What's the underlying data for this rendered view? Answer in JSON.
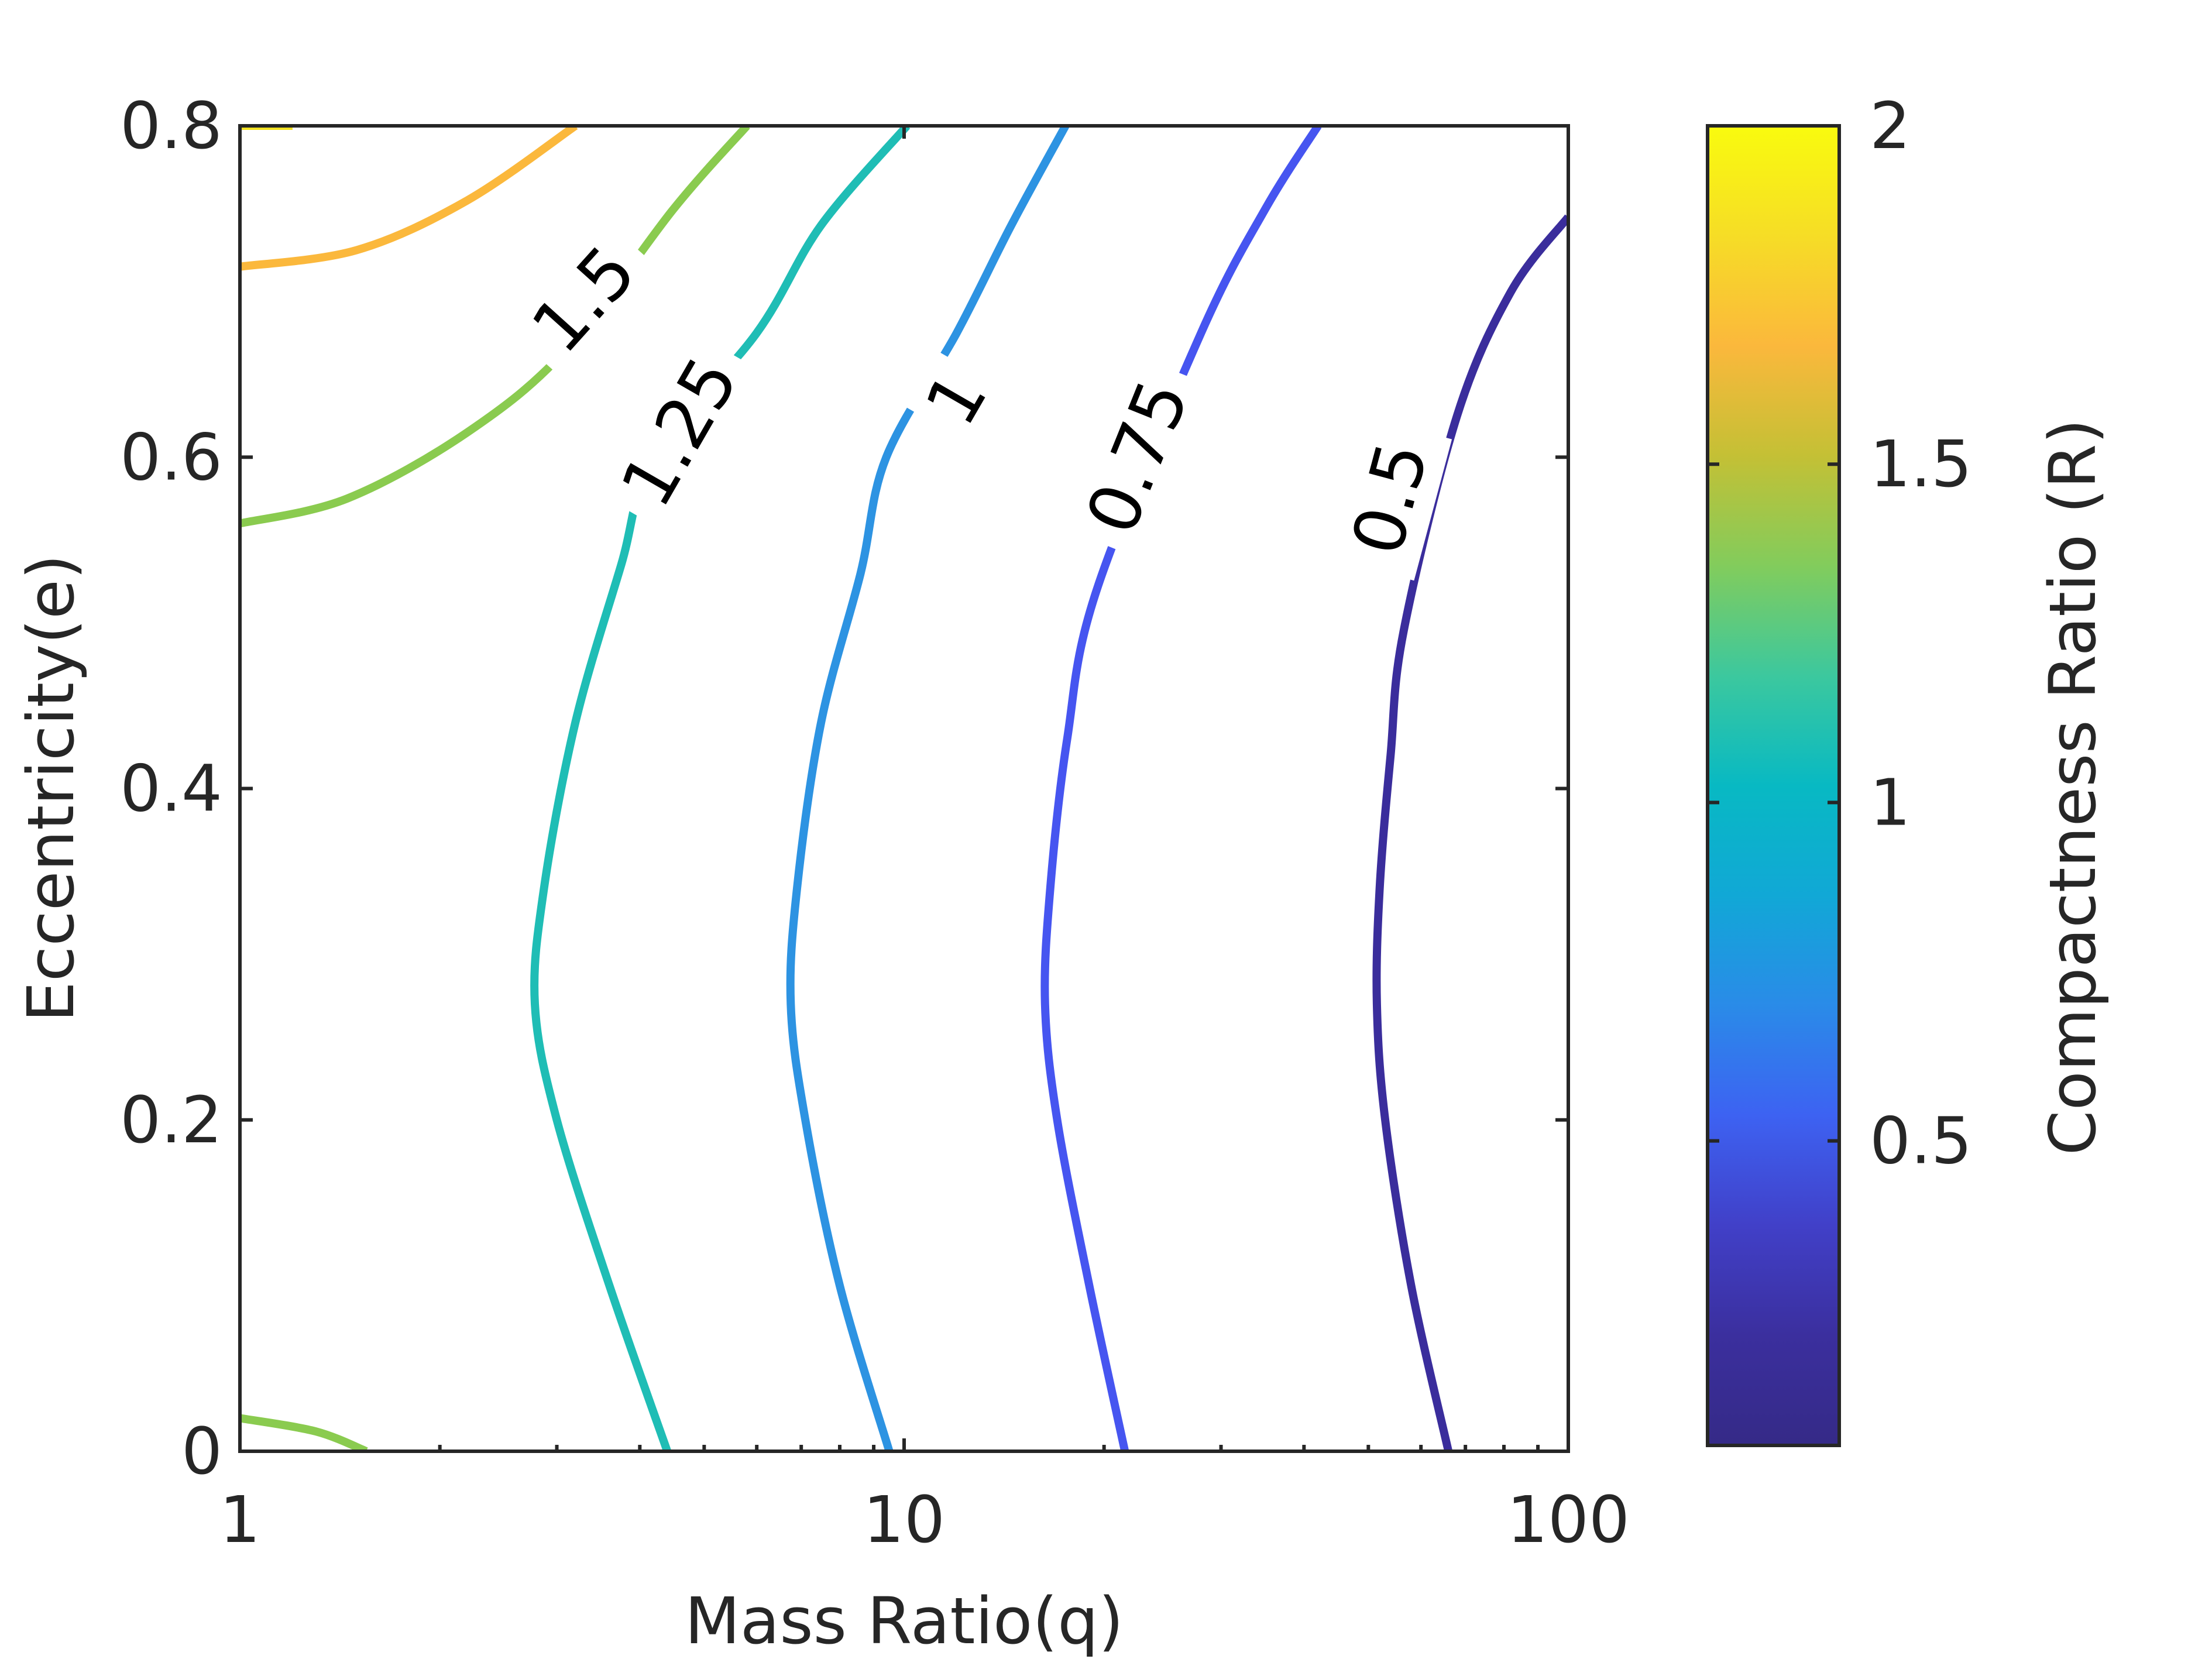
{
  "chart_data": {
    "type": "contour",
    "xlabel": "Mass Ratio(q)",
    "ylabel": "Eccentricity(e)",
    "xscale": "log",
    "xlim": [
      1,
      100
    ],
    "ylim": [
      0,
      0.8
    ],
    "xticks": [
      1,
      10,
      100
    ],
    "xtick_labels": [
      "1",
      "10",
      "100"
    ],
    "yticks": [
      0,
      0.2,
      0.4,
      0.6,
      0.8
    ],
    "ytick_labels": [
      "0",
      "0.2",
      "0.4",
      "0.6",
      "0.8"
    ],
    "grid": false,
    "colorbar": {
      "label": "Compactness Ratio (R)",
      "range": [
        0.05,
        2.0
      ],
      "ticks": [
        0.5,
        1,
        1.5,
        2
      ],
      "tick_labels": [
        "0.5",
        "1",
        "1.5",
        "2"
      ],
      "colormap": "parula",
      "colors": [
        "#352a87",
        "#3b2f9e",
        "#4140c8",
        "#3d62f2",
        "#2a8be8",
        "#11a8d6",
        "#08b9c3",
        "#3cc89e",
        "#82cc5c",
        "#c4c035",
        "#fbb83c",
        "#f6dd26",
        "#f9fb0e"
      ]
    },
    "contours": [
      {
        "level": 0.5,
        "label": "0.5",
        "color": "#3a2d9c",
        "label_at": {
          "q": 54,
          "e": 0.575,
          "angle": -75
        },
        "points": [
          [
            66,
            0.0
          ],
          [
            58,
            0.1
          ],
          [
            53,
            0.2
          ],
          [
            51.5,
            0.27
          ],
          [
            52,
            0.34
          ],
          [
            54,
            0.42
          ],
          [
            56.5,
            0.495
          ],
          [
            68,
            0.625
          ],
          [
            82,
            0.7
          ],
          [
            100,
            0.745
          ]
        ]
      },
      {
        "level": 0.75,
        "label": "0.75",
        "color": "#4655f0",
        "label_at": {
          "q": 22.5,
          "e": 0.6,
          "angle": -68
        },
        "points": [
          [
            21.5,
            0.0
          ],
          [
            19,
            0.1
          ],
          [
            17,
            0.2
          ],
          [
            16.3,
            0.27
          ],
          [
            16.6,
            0.34
          ],
          [
            17.6,
            0.43
          ],
          [
            19.5,
            0.52
          ],
          [
            28,
            0.675
          ],
          [
            35,
            0.75
          ],
          [
            42,
            0.8
          ]
        ]
      },
      {
        "level": 1,
        "label": "1",
        "color": "#2d93e2",
        "label_at": {
          "q": 12,
          "e": 0.635,
          "angle": -60
        },
        "points": [
          [
            9.5,
            0.0
          ],
          [
            8,
            0.1
          ],
          [
            7.1,
            0.2
          ],
          [
            6.75,
            0.27
          ],
          [
            6.9,
            0.34
          ],
          [
            7.5,
            0.44
          ],
          [
            8.6,
            0.53
          ],
          [
            9.4,
            0.6
          ],
          [
            12,
            0.675
          ],
          [
            14.5,
            0.74
          ],
          [
            17.5,
            0.8
          ]
        ]
      },
      {
        "level": 1.25,
        "label": "1.25",
        "color": "#1fbdb5",
        "label_at": {
          "q": 4.6,
          "e": 0.615,
          "angle": -60
        },
        "points": [
          [
            4.4,
            0.0
          ],
          [
            3.6,
            0.1
          ],
          [
            3.0,
            0.2
          ],
          [
            2.78,
            0.27
          ],
          [
            2.87,
            0.34
          ],
          [
            3.2,
            0.44
          ],
          [
            3.75,
            0.535
          ],
          [
            4.2,
            0.6
          ],
          [
            6.0,
            0.675
          ],
          [
            7.5,
            0.74
          ],
          [
            10.1,
            0.8
          ]
        ]
      },
      {
        "level": 1.5,
        "label": "1.5",
        "color": "#8acb4f",
        "label_at": {
          "q": 3.3,
          "e": 0.695,
          "angle": -48
        },
        "points": [
          [
            1.0,
            0.56
          ],
          [
            1.45,
            0.575
          ],
          [
            2.2,
            0.615
          ],
          [
            3.1,
            0.665
          ],
          [
            4.5,
            0.75
          ],
          [
            5.8,
            0.8
          ]
        ]
      },
      {
        "level": 1.5,
        "label": "",
        "color": "#8acb4f",
        "points": [
          [
            1.0,
            0.02
          ],
          [
            1.3,
            0.012
          ],
          [
            1.55,
            0.0
          ]
        ]
      },
      {
        "level": 1.75,
        "label": "",
        "color": "#fbb83c",
        "points": [
          [
            1.0,
            0.715
          ],
          [
            1.5,
            0.725
          ],
          [
            2.2,
            0.755
          ],
          [
            3.2,
            0.8
          ]
        ]
      },
      {
        "level": 1.95,
        "label": "",
        "color": "#f3e21f",
        "points": [
          [
            1.0,
            0.8
          ],
          [
            1.2,
            0.8
          ]
        ]
      }
    ]
  }
}
